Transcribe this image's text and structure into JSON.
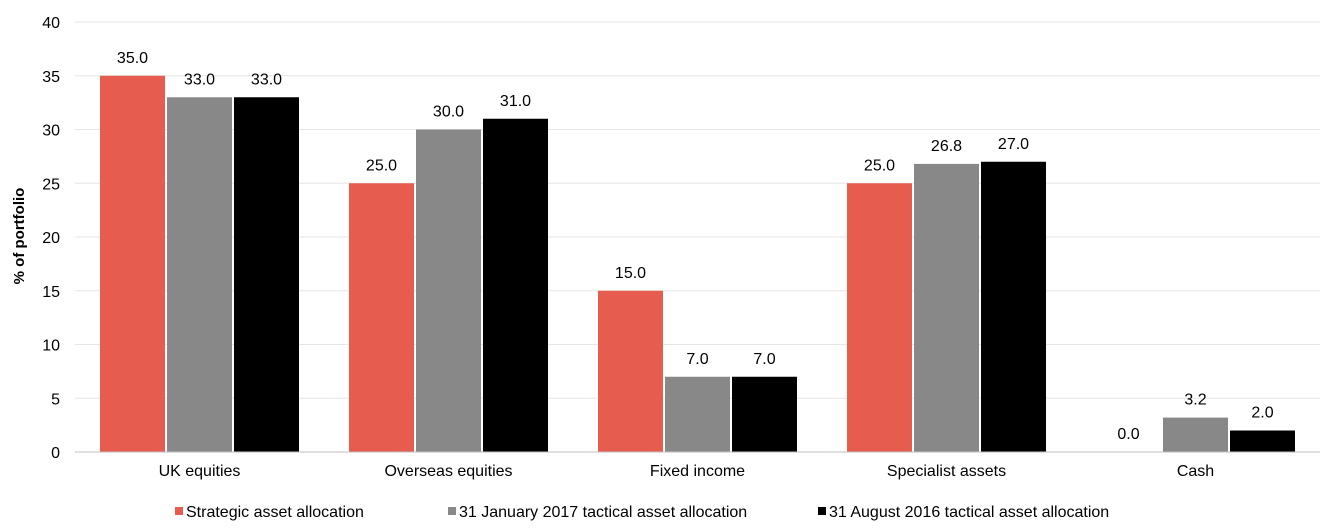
{
  "chart_data": {
    "type": "bar",
    "ylabel": "% of portfolio",
    "ylim": [
      0,
      40
    ],
    "yticks": [
      0,
      5,
      10,
      15,
      20,
      25,
      30,
      35,
      40
    ],
    "grid": true,
    "legend_position": "bottom",
    "categories": [
      "UK equities",
      "Overseas equities",
      "Fixed income",
      "Specialist assets",
      "Cash"
    ],
    "series": [
      {
        "name": "Strategic asset allocation",
        "color": "#e65c4f",
        "values": [
          35.0,
          25.0,
          15.0,
          25.0,
          0.0
        ],
        "labels": [
          "35.0",
          "25.0",
          "15.0",
          "25.0",
          "0.0"
        ]
      },
      {
        "name": "31 January 2017 tactical asset allocation",
        "color": "#888888",
        "values": [
          33.0,
          30.0,
          7.0,
          26.8,
          3.2
        ],
        "labels": [
          "33.0",
          "30.0",
          "7.0",
          "26.8",
          "3.2"
        ]
      },
      {
        "name": "31 August 2016 tactical asset allocation",
        "color": "#000000",
        "values": [
          33.0,
          31.0,
          7.0,
          27.0,
          2.0
        ],
        "labels": [
          "33.0",
          "31.0",
          "7.0",
          "27.0",
          "2.0"
        ]
      }
    ]
  }
}
